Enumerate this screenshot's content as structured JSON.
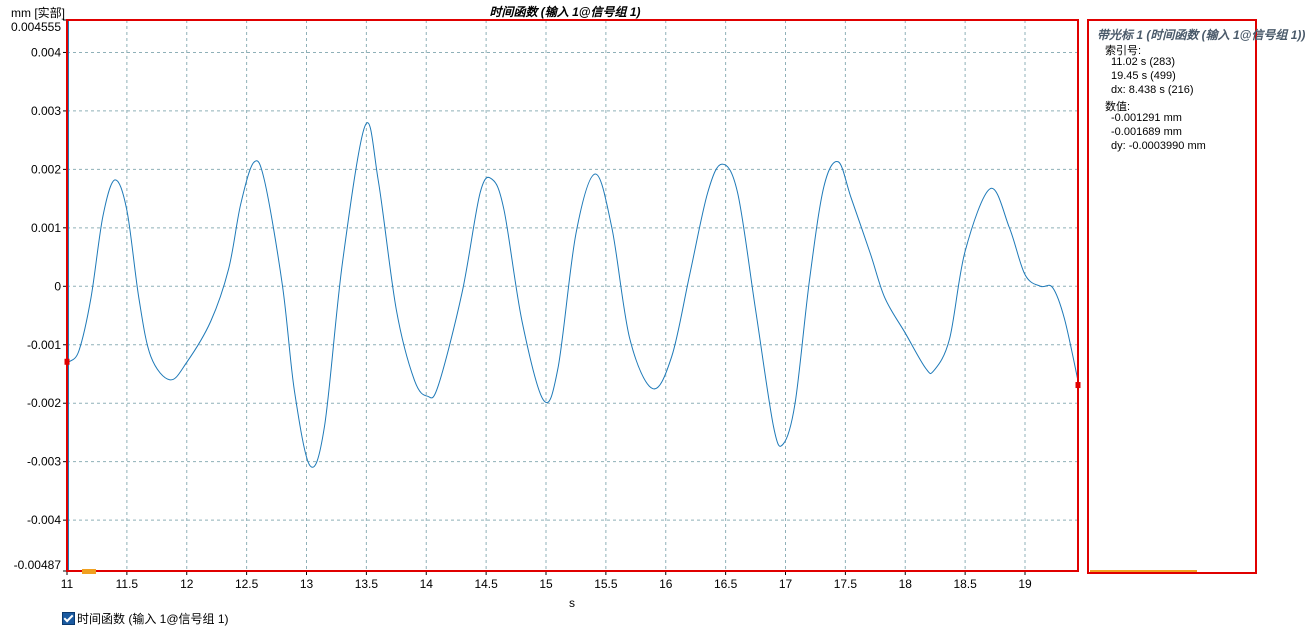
{
  "chart_data": {
    "type": "line",
    "title": "时间函数 (输入 1@信号组 1)",
    "ylabel": "mm [实部]",
    "xlabel": "s",
    "xlim": [
      11.0,
      19.45
    ],
    "ylim": [
      -0.00487,
      0.004555
    ],
    "x_ticks": [
      "11",
      "11.5",
      "12",
      "12.5",
      "13",
      "13.5",
      "14",
      "14.5",
      "15",
      "15.5",
      "16",
      "16.5",
      "17",
      "17.5",
      "18",
      "18.5",
      "19"
    ],
    "y_ticks": [
      "0.004555",
      "0.004",
      "0.003",
      "0.002",
      "0.001",
      "0",
      "-0.001",
      "-0.002",
      "-0.003",
      "-0.004",
      "-0.00487"
    ],
    "grid": true,
    "series_color": "#1f7ab8",
    "series": [
      {
        "name": "时间函数 (输入 1@信号组 1)",
        "points": [
          [
            11.02,
            -0.00129
          ],
          [
            11.1,
            -0.0011
          ],
          [
            11.2,
            -0.0002
          ],
          [
            11.3,
            0.0012
          ],
          [
            11.4,
            0.00182
          ],
          [
            11.5,
            0.0013
          ],
          [
            11.6,
            -0.0002
          ],
          [
            11.7,
            -0.0012
          ],
          [
            11.86,
            -0.0016
          ],
          [
            12.0,
            -0.0013
          ],
          [
            12.2,
            -0.0006
          ],
          [
            12.35,
            0.0003
          ],
          [
            12.45,
            0.0014
          ],
          [
            12.56,
            0.00212
          ],
          [
            12.65,
            0.0018
          ],
          [
            12.8,
            0.0
          ],
          [
            12.9,
            -0.0018
          ],
          [
            13.03,
            -0.00307
          ],
          [
            13.15,
            -0.0024
          ],
          [
            13.3,
            0.0004
          ],
          [
            13.49,
            0.00275
          ],
          [
            13.6,
            0.0018
          ],
          [
            13.75,
            -0.0004
          ],
          [
            13.9,
            -0.0016
          ],
          [
            14.01,
            -0.00188
          ],
          [
            14.1,
            -0.0017
          ],
          [
            14.3,
            -0.0001
          ],
          [
            14.45,
            0.0016
          ],
          [
            14.55,
            0.00183
          ],
          [
            14.65,
            0.0013
          ],
          [
            14.8,
            -0.0006
          ],
          [
            14.98,
            -0.00195
          ],
          [
            15.1,
            -0.0014
          ],
          [
            15.25,
            0.0009
          ],
          [
            15.41,
            0.00192
          ],
          [
            15.55,
            0.001
          ],
          [
            15.7,
            -0.0009
          ],
          [
            15.89,
            -0.00175
          ],
          [
            16.05,
            -0.0012
          ],
          [
            16.2,
            0.0002
          ],
          [
            16.35,
            0.0016
          ],
          [
            16.47,
            0.00209
          ],
          [
            16.6,
            0.0016
          ],
          [
            16.75,
            -0.0004
          ],
          [
            16.9,
            -0.0024
          ],
          [
            16.98,
            -0.0027
          ],
          [
            17.08,
            -0.002
          ],
          [
            17.2,
            0.0001
          ],
          [
            17.32,
            0.0017
          ],
          [
            17.44,
            0.00213
          ],
          [
            17.55,
            0.0015
          ],
          [
            17.71,
            0.00055
          ],
          [
            17.83,
            -0.0002
          ],
          [
            18.0,
            -0.0008
          ],
          [
            18.17,
            -0.0014
          ],
          [
            18.24,
            -0.00144
          ],
          [
            18.37,
            -0.0009
          ],
          [
            18.5,
            0.0006
          ],
          [
            18.71,
            0.00167
          ],
          [
            18.87,
            0.001
          ],
          [
            19.0,
            0.0002
          ],
          [
            19.13,
            0.0
          ],
          [
            19.23,
            -2e-05
          ],
          [
            19.33,
            -0.00056
          ],
          [
            19.45,
            -0.00169
          ]
        ]
      }
    ],
    "cursors": [
      {
        "x": 11.02,
        "y": -0.001291
      },
      {
        "x": 19.45,
        "y": -0.001689
      }
    ],
    "frame_color": "#e00000",
    "legend_position": "bottom-left"
  },
  "cursor_panel": {
    "title": "带光标 1 (时间函数 (输入 1@信号组 1))",
    "index_label": "索引号:",
    "x1": "11.02 s (283)",
    "x2": "19.45 s (499)",
    "dx": "dx: 8.438 s (216)",
    "value_label": "数值:",
    "y1": "-0.001291 mm",
    "y2": "-0.001689 mm",
    "dy": "dy: -0.0003990 mm"
  },
  "legend": {
    "label": "时间函数 (输入 1@信号组 1)",
    "checked": true
  }
}
